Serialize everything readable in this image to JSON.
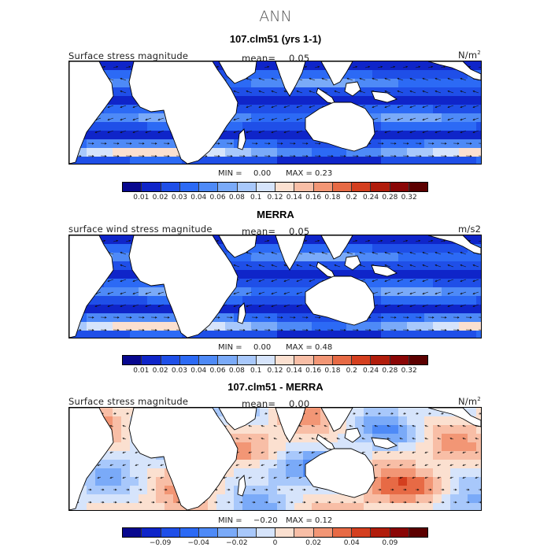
{
  "page_title": "ANN",
  "panels": [
    {
      "title": "107.clm51 (yrs 1-1)",
      "left_label": "Surface stress magnitude",
      "mean_label": "mean=",
      "mean_value": "0.05",
      "units": "N/m",
      "units_sup": "2",
      "min_label": "MIN =",
      "min_value": "0.00",
      "max_label": "MAX =",
      "max_value": "0.23",
      "colorbar_ticks": [
        "0.01",
        "0.02",
        "0.03",
        "0.04",
        "0.06",
        "0.08",
        "0.1",
        "0.12",
        "0.14",
        "0.16",
        "0.18",
        "0.2",
        "0.24",
        "0.28",
        "0.32"
      ],
      "colormap": [
        "#08088f",
        "#0f25c9",
        "#1f4fe8",
        "#2c6af5",
        "#4e8af7",
        "#7aaaf8",
        "#a8c8fb",
        "#d6e4fb",
        "#fbe0d0",
        "#f8bea6",
        "#f29675",
        "#e76a45",
        "#d43f1f",
        "#b11d0c",
        "#8a0606",
        "#5c0000"
      ],
      "field": "abs"
    },
    {
      "title": "MERRA",
      "left_label": "surface wind stress magnitude",
      "mean_label": "mean=",
      "mean_value": "0.05",
      "units": "m/s2",
      "units_sup": "",
      "min_label": "MIN =",
      "min_value": "0.00",
      "max_label": "MAX =",
      "max_value": "0.48",
      "colorbar_ticks": [
        "0.01",
        "0.02",
        "0.03",
        "0.04",
        "0.06",
        "0.08",
        "0.1",
        "0.12",
        "0.14",
        "0.16",
        "0.18",
        "0.2",
        "0.24",
        "0.28",
        "0.32"
      ],
      "colormap": [
        "#08088f",
        "#0f25c9",
        "#1f4fe8",
        "#2c6af5",
        "#4e8af7",
        "#7aaaf8",
        "#a8c8fb",
        "#d6e4fb",
        "#fbe0d0",
        "#f8bea6",
        "#f29675",
        "#e76a45",
        "#d43f1f",
        "#b11d0c",
        "#8a0606",
        "#5c0000"
      ],
      "field": "abs"
    },
    {
      "title": "107.clm51 - MERRA",
      "left_label": "Surface stress magnitude",
      "mean_label": "mean=",
      "mean_value": "0.00",
      "units": "N/m",
      "units_sup": "2",
      "min_label": "MIN =",
      "min_value": "−0.20",
      "max_label": "MAX =",
      "max_value": "0.12",
      "colorbar_ticks": [
        "−0.09",
        "−0.04",
        "−0.02",
        "0",
        "0.02",
        "0.04",
        "0.09"
      ],
      "colormap": [
        "#08088f",
        "#0f25c9",
        "#1f4fe8",
        "#2c6af5",
        "#4e8af7",
        "#7aaaf8",
        "#a8c8fb",
        "#d6e4fb",
        "#fbe0d0",
        "#f8bea6",
        "#f29675",
        "#e76a45",
        "#d43f1f",
        "#b11d0c",
        "#8a0606",
        "#5c0000"
      ],
      "field": "diff"
    }
  ]
}
